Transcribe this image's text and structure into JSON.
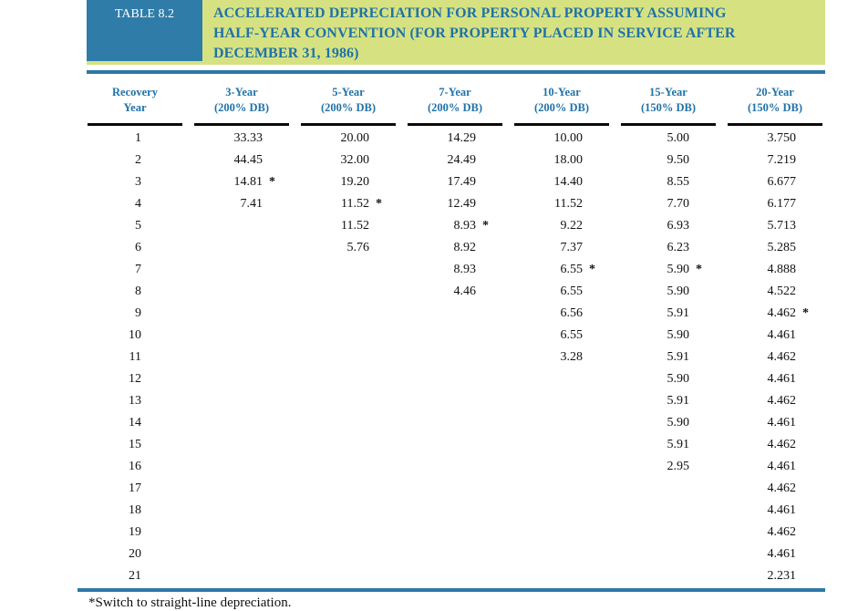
{
  "table": {
    "label": "TABLE 8.2",
    "title": "ACCELERATED DEPRECIATION FOR PERSONAL PROPERTY ASSUMING HALF-YEAR CONVENTION (FOR PROPERTY PLACED IN SERVICE AFTER DECEMBER 31, 1986)",
    "title_lines": [
      "ACCELERATED DEPRECIATION FOR PERSONAL PROPERTY ASSUMING",
      "HALF-YEAR CONVENTION (FOR PROPERTY PLACED IN SERVICE AFTER",
      "DECEMBER 31, 1986)"
    ],
    "columns": [
      {
        "line1": "Recovery",
        "line2": "Year"
      },
      {
        "line1": "3-Year",
        "line2": "(200% DB)"
      },
      {
        "line1": "5-Year",
        "line2": "(200% DB)"
      },
      {
        "line1": "7-Year",
        "line2": "(200% DB)"
      },
      {
        "line1": "10-Year",
        "line2": "(200% DB)"
      },
      {
        "line1": "15-Year",
        "line2": "(150% DB)"
      },
      {
        "line1": "20-Year",
        "line2": "(150% DB)"
      }
    ],
    "rows": [
      {
        "year": "1",
        "values": [
          "33.33",
          "20.00",
          "14.29",
          "10.00",
          "5.00",
          "3.750"
        ]
      },
      {
        "year": "2",
        "values": [
          "44.45",
          "32.00",
          "24.49",
          "18.00",
          "9.50",
          "7.219"
        ]
      },
      {
        "year": "3",
        "values": [
          "14.81*",
          "19.20",
          "17.49",
          "14.40",
          "8.55",
          "6.677"
        ]
      },
      {
        "year": "4",
        "values": [
          "7.41",
          "11.52*",
          "12.49",
          "11.52",
          "7.70",
          "6.177"
        ]
      },
      {
        "year": "5",
        "values": [
          "",
          "11.52",
          "8.93*",
          "9.22",
          "6.93",
          "5.713"
        ]
      },
      {
        "year": "6",
        "values": [
          "",
          "5.76",
          "8.92",
          "7.37",
          "6.23",
          "5.285"
        ]
      },
      {
        "year": "7",
        "values": [
          "",
          "",
          "8.93",
          "6.55*",
          "5.90*",
          "4.888"
        ]
      },
      {
        "year": "8",
        "values": [
          "",
          "",
          "4.46",
          "6.55",
          "5.90",
          "4.522"
        ]
      },
      {
        "year": "9",
        "values": [
          "",
          "",
          "",
          "6.56",
          "5.91",
          "4.462*"
        ]
      },
      {
        "year": "10",
        "values": [
          "",
          "",
          "",
          "6.55",
          "5.90",
          "4.461"
        ]
      },
      {
        "year": "11",
        "values": [
          "",
          "",
          "",
          "3.28",
          "5.91",
          "4.462"
        ]
      },
      {
        "year": "12",
        "values": [
          "",
          "",
          "",
          "",
          "5.90",
          "4.461"
        ]
      },
      {
        "year": "13",
        "values": [
          "",
          "",
          "",
          "",
          "5.91",
          "4.462"
        ]
      },
      {
        "year": "14",
        "values": [
          "",
          "",
          "",
          "",
          "5.90",
          "4.461"
        ]
      },
      {
        "year": "15",
        "values": [
          "",
          "",
          "",
          "",
          "5.91",
          "4.462"
        ]
      },
      {
        "year": "16",
        "values": [
          "",
          "",
          "",
          "",
          "2.95",
          "4.461"
        ]
      },
      {
        "year": "17",
        "values": [
          "",
          "",
          "",
          "",
          "",
          "4.462"
        ]
      },
      {
        "year": "18",
        "values": [
          "",
          "",
          "",
          "",
          "",
          "4.461"
        ]
      },
      {
        "year": "19",
        "values": [
          "",
          "",
          "",
          "",
          "",
          "4.462"
        ]
      },
      {
        "year": "20",
        "values": [
          "",
          "",
          "",
          "",
          "",
          "4.461"
        ]
      },
      {
        "year": "21",
        "values": [
          "",
          "",
          "",
          "",
          "",
          "2.231"
        ]
      }
    ],
    "footnote": "*Switch to straight-line depreciation."
  },
  "colors": {
    "band_green": "#d6e282",
    "badge_blue": "#2f7ca9",
    "title_text_blue": "#1f72a8",
    "rule_blue": "#2e77a8",
    "header_underline_black": "#0a0a0a",
    "body_text": "#111111"
  }
}
